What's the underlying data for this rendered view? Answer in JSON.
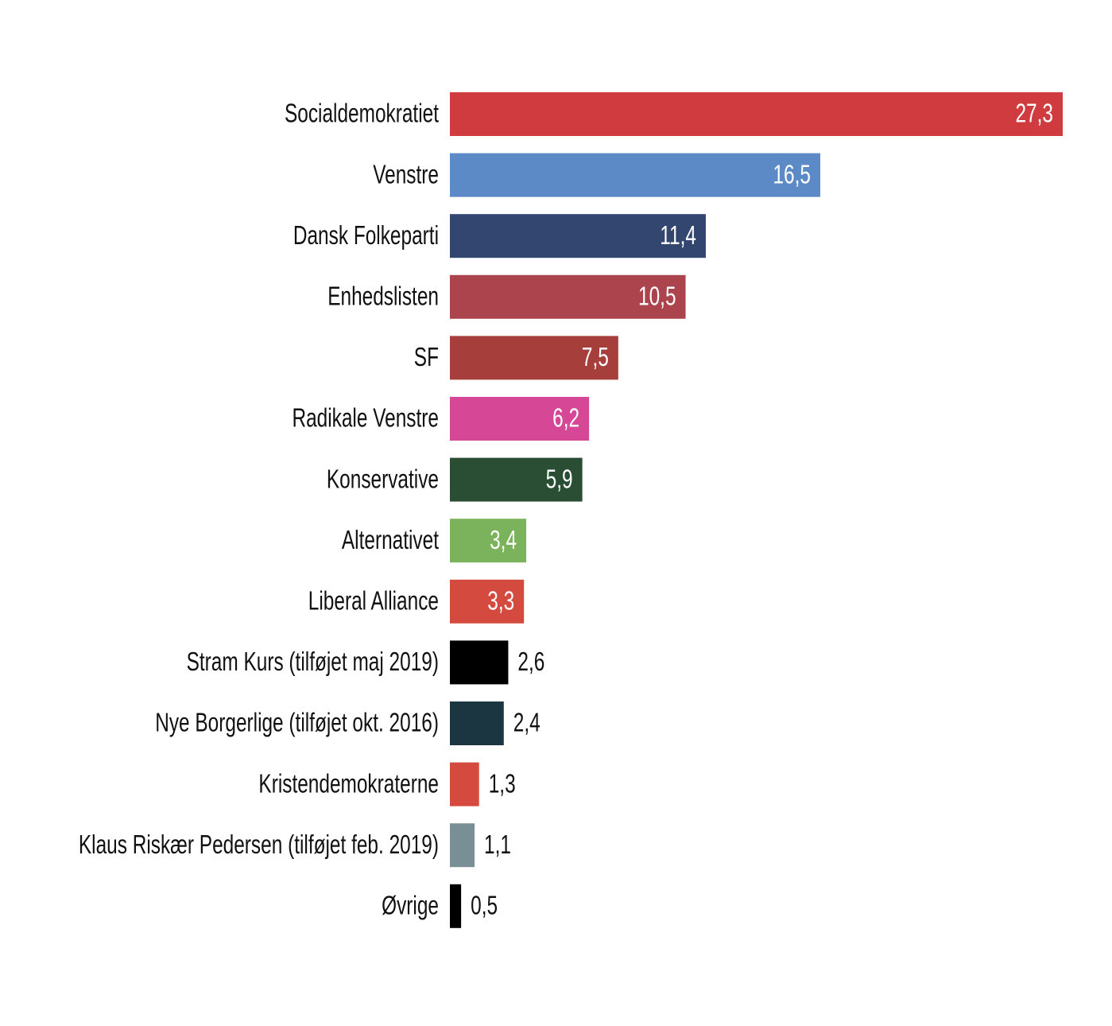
{
  "chart_data": {
    "type": "bar",
    "orientation": "horizontal",
    "xlim": [
      0,
      27.3
    ],
    "grid": false,
    "legend": "none",
    "categories": [
      "Socialdemokratiet",
      "Venstre",
      "Dansk Folkeparti",
      "Enhedslisten",
      "SF",
      "Radikale Venstre",
      "Konservative",
      "Alternativet",
      "Liberal Alliance",
      "Stram Kurs (tilføjet maj 2019)",
      "Nye Borgerlige (tilføjet okt. 2016)",
      "Kristendemokraterne",
      "Klaus Riskær Pedersen (tilføjet feb. 2019)",
      "Øvrige"
    ],
    "values": [
      27.3,
      16.5,
      11.4,
      10.5,
      7.5,
      6.2,
      5.9,
      3.4,
      3.3,
      2.6,
      2.4,
      1.3,
      1.1,
      0.5
    ],
    "value_labels": [
      "27,3",
      "16,5",
      "11,4",
      "10,5",
      "7,5",
      "6,2",
      "5,9",
      "3,4",
      "3,3",
      "2,6",
      "2,4",
      "1,3",
      "1,1",
      "0,5"
    ],
    "colors": [
      "#d03b3f",
      "#5b8ac6",
      "#334670",
      "#ab444c",
      "#a63f3b",
      "#d64796",
      "#2a4e33",
      "#7bb35c",
      "#d44a3e",
      "#000000",
      "#1b3541",
      "#d44a3e",
      "#798e95",
      "#000000"
    ]
  }
}
